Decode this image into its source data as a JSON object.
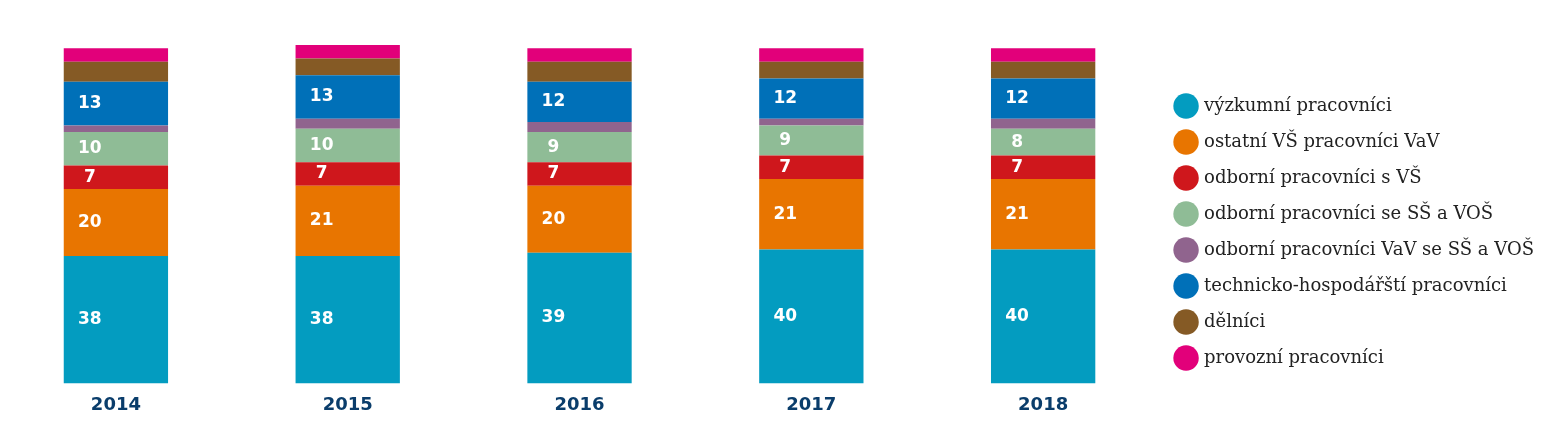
{
  "chart_data": {
    "type": "bar",
    "stacked": true,
    "legend": "right",
    "tick_labels": "x",
    "grid": false,
    "categories": [
      "2014",
      "2015",
      "2016",
      "2017",
      "2018"
    ],
    "series": [
      {
        "name": "výzkumní pracovníci",
        "color": "#039cc0",
        "values": [
          38,
          38,
          39,
          40,
          40
        ],
        "value_labels": [
          "38",
          "38",
          "39",
          "40",
          "40"
        ]
      },
      {
        "name": "ostatní VŠ pracovníci VaV",
        "color": "#e87500",
        "values": [
          20,
          21,
          20,
          21,
          21
        ],
        "value_labels": [
          "20",
          "21",
          "20",
          "21",
          "21"
        ]
      },
      {
        "name": "odborní pracovníci s VŠ",
        "color": "#cf171c",
        "values": [
          7,
          7,
          7,
          7,
          7
        ],
        "value_labels": [
          "7",
          "7",
          "7",
          "7",
          "7"
        ]
      },
      {
        "name": "odborní pracovníci se SŠ a VOŠ",
        "color": "#8fbc96",
        "values": [
          10,
          10,
          9,
          9,
          8
        ],
        "value_labels": [
          "10",
          "10",
          "9",
          "9",
          "8"
        ]
      },
      {
        "name": "odborní pracovníci VaV se SŠ a VOŠ",
        "color": "#90648e",
        "values": [
          2,
          3,
          3,
          2,
          3
        ],
        "value_labels": [
          null,
          null,
          null,
          null,
          null
        ]
      },
      {
        "name": "technicko-hospodářští pracovníci",
        "color": "#0070b8",
        "values": [
          13,
          13,
          12,
          12,
          12
        ],
        "value_labels": [
          "13",
          "13",
          "12",
          "12",
          "12"
        ]
      },
      {
        "name": "dělníci",
        "color": "#855a25",
        "values": [
          6,
          5,
          6,
          5,
          5
        ],
        "value_labels": [
          null,
          null,
          null,
          null,
          null
        ]
      },
      {
        "name": "provozní pracovníci",
        "color": "#e2007a",
        "values": [
          4,
          4,
          4,
          4,
          4
        ],
        "value_labels": [
          null,
          null,
          null,
          null,
          null
        ]
      }
    ]
  }
}
